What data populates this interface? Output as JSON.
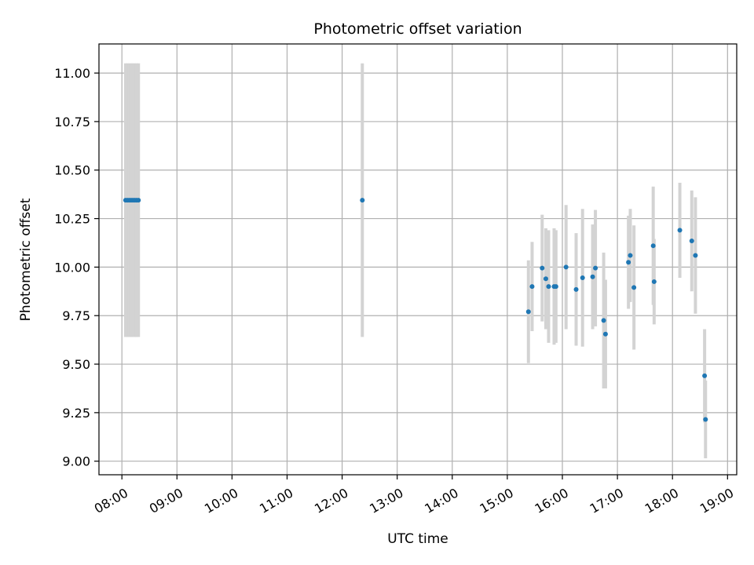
{
  "chart_data": {
    "type": "scatter",
    "title": "Photometric offset variation",
    "xlabel": "UTC time",
    "ylabel": "Photometric offset",
    "x_ticks": [
      "08:00",
      "09:00",
      "10:00",
      "11:00",
      "12:00",
      "13:00",
      "14:00",
      "15:00",
      "16:00",
      "17:00",
      "18:00",
      "19:00"
    ],
    "y_ticks": [
      "9.00",
      "9.25",
      "9.50",
      "9.75",
      "10.00",
      "10.25",
      "10.50",
      "10.75",
      "11.00"
    ],
    "xlim": [
      "07:35",
      "19:10"
    ],
    "ylim": [
      8.93,
      11.15
    ],
    "grid": true,
    "colors": {
      "point": "#1f77b4",
      "errorbar": "#d3d3d3",
      "grid": "#b0b0b0"
    },
    "points": [
      {
        "x": "08:04",
        "y": 10.345,
        "err": 0.705
      },
      {
        "x": "08:06",
        "y": 10.345,
        "err": 0.705
      },
      {
        "x": "08:08",
        "y": 10.345,
        "err": 0.705
      },
      {
        "x": "08:10",
        "y": 10.345,
        "err": 0.705
      },
      {
        "x": "08:12",
        "y": 10.345,
        "err": 0.705
      },
      {
        "x": "08:14",
        "y": 10.345,
        "err": 0.705
      },
      {
        "x": "08:16",
        "y": 10.345,
        "err": 0.705
      },
      {
        "x": "08:18",
        "y": 10.345,
        "err": 0.705
      },
      {
        "x": "12:22",
        "y": 10.345,
        "err": 0.705
      },
      {
        "x": "15:23",
        "y": 9.77,
        "err": 0.265
      },
      {
        "x": "15:27",
        "y": 9.9,
        "err": 0.23
      },
      {
        "x": "15:38",
        "y": 9.995,
        "err": 0.275
      },
      {
        "x": "15:42",
        "y": 9.94,
        "err": 0.26
      },
      {
        "x": "15:45",
        "y": 9.9,
        "err": 0.29
      },
      {
        "x": "15:51",
        "y": 9.9,
        "err": 0.3
      },
      {
        "x": "15:53",
        "y": 9.9,
        "err": 0.29
      },
      {
        "x": "16:04",
        "y": 10.0,
        "err": 0.32
      },
      {
        "x": "16:15",
        "y": 9.885,
        "err": 0.29
      },
      {
        "x": "16:22",
        "y": 9.945,
        "err": 0.355
      },
      {
        "x": "16:33",
        "y": 9.95,
        "err": 0.27
      },
      {
        "x": "16:36",
        "y": 9.995,
        "err": 0.3
      },
      {
        "x": "16:45",
        "y": 9.725,
        "err": 0.35
      },
      {
        "x": "16:47",
        "y": 9.655,
        "err": 0.28
      },
      {
        "x": "17:12",
        "y": 10.025,
        "err": 0.24
      },
      {
        "x": "17:14",
        "y": 10.06,
        "err": 0.24
      },
      {
        "x": "17:18",
        "y": 9.895,
        "err": 0.32
      },
      {
        "x": "17:39",
        "y": 10.11,
        "err": 0.305
      },
      {
        "x": "17:40",
        "y": 9.925,
        "err": 0.22
      },
      {
        "x": "18:08",
        "y": 10.19,
        "err": 0.245
      },
      {
        "x": "18:21",
        "y": 10.135,
        "err": 0.26
      },
      {
        "x": "18:25",
        "y": 10.06,
        "err": 0.3
      },
      {
        "x": "18:35",
        "y": 9.44,
        "err": 0.24
      },
      {
        "x": "18:36",
        "y": 9.215,
        "err": 0.2
      }
    ]
  }
}
